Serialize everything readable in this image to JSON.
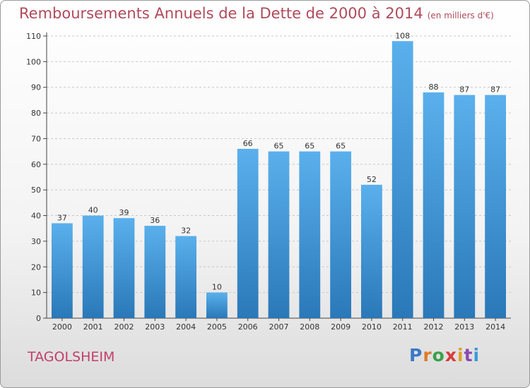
{
  "title": "Remboursements Annuels de la Dette de 2000 à 2014",
  "unit": "(en milliers d'€)",
  "commune": "TAGOLSHEIM",
  "logo": {
    "text": "Proxiti",
    "letters": [
      {
        "ch": "P",
        "color": "#3a78c8"
      },
      {
        "ch": "r",
        "color": "#e07a2a"
      },
      {
        "ch": "o",
        "color": "#3aa04a"
      },
      {
        "ch": "x",
        "color": "#d83a3a"
      },
      {
        "ch": "i",
        "color": "#e0a02a"
      },
      {
        "ch": "t",
        "color": "#8a4ab0"
      },
      {
        "ch": "i",
        "color": "#3a9ad8"
      }
    ]
  },
  "colors": {
    "bar_light": "#5ab0ec",
    "bar_dark": "#2a78b8",
    "grid": "#c8c8c8",
    "axis": "#444444"
  },
  "chart_data": {
    "type": "bar",
    "categories": [
      "2000",
      "2001",
      "2002",
      "2003",
      "2004",
      "2005",
      "2006",
      "2007",
      "2008",
      "2009",
      "2010",
      "2011",
      "2012",
      "2013",
      "2014"
    ],
    "values": [
      37,
      40,
      39,
      36,
      32,
      10,
      66,
      65,
      65,
      65,
      52,
      108,
      88,
      87,
      87
    ],
    "ylim": [
      0,
      110
    ],
    "yticks": [
      0,
      10,
      20,
      30,
      40,
      50,
      60,
      70,
      80,
      90,
      100,
      110
    ],
    "grid": true,
    "data_labels": true
  }
}
